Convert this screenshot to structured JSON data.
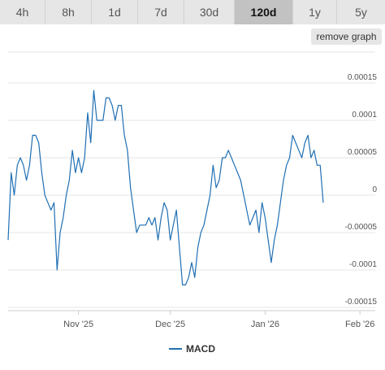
{
  "tabs": [
    {
      "label": "4h",
      "active": false
    },
    {
      "label": "8h",
      "active": false
    },
    {
      "label": "1d",
      "active": false
    },
    {
      "label": "7d",
      "active": false
    },
    {
      "label": "30d",
      "active": false
    },
    {
      "label": "120d",
      "active": true
    },
    {
      "label": "1y",
      "active": false
    },
    {
      "label": "5y",
      "active": false
    }
  ],
  "remove_graph_label": "remove graph",
  "legend": {
    "label": "MACD"
  },
  "colors": {
    "series": "#1f6fb4",
    "grid": "#e6e6e6",
    "axis_text": "#555555"
  },
  "chart_data": {
    "type": "line",
    "title": "",
    "xlabel": "",
    "ylabel": "",
    "x_range": [
      "2025-10-09",
      "2026-02-06"
    ],
    "ylim": [
      -0.00015,
      0.00015
    ],
    "y_ticks": [
      {
        "value": 0.00015,
        "label": "0.00015"
      },
      {
        "value": 0.0001,
        "label": "0.0001"
      },
      {
        "value": 5e-05,
        "label": "0.00005"
      },
      {
        "value": 0,
        "label": "0"
      },
      {
        "value": -5e-05,
        "label": "-0.00005"
      },
      {
        "value": -0.0001,
        "label": "-0.0001"
      },
      {
        "value": -0.00015,
        "label": "-0.00015"
      }
    ],
    "x_ticks": [
      {
        "date": "2025-11-01",
        "label": "Nov '25"
      },
      {
        "date": "2025-12-01",
        "label": "Dec '25"
      },
      {
        "date": "2026-01-01",
        "label": "Jan '26"
      },
      {
        "date": "2026-02-01",
        "label": "Feb '26"
      }
    ],
    "grid": true,
    "legend_position": "bottom-center",
    "series": [
      {
        "name": "MACD",
        "points": [
          [
            "2025-10-09",
            -6e-05
          ],
          [
            "2025-10-10",
            3e-05
          ],
          [
            "2025-10-11",
            0.0
          ],
          [
            "2025-10-12",
            4e-05
          ],
          [
            "2025-10-13",
            5e-05
          ],
          [
            "2025-10-14",
            4e-05
          ],
          [
            "2025-10-15",
            2e-05
          ],
          [
            "2025-10-16",
            4e-05
          ],
          [
            "2025-10-17",
            8e-05
          ],
          [
            "2025-10-18",
            8e-05
          ],
          [
            "2025-10-19",
            7e-05
          ],
          [
            "2025-10-20",
            3e-05
          ],
          [
            "2025-10-21",
            0.0
          ],
          [
            "2025-10-22",
            -1e-05
          ],
          [
            "2025-10-23",
            -2e-05
          ],
          [
            "2025-10-24",
            -1e-05
          ],
          [
            "2025-10-25",
            -0.0001
          ],
          [
            "2025-10-26",
            -5e-05
          ],
          [
            "2025-10-27",
            -3e-05
          ],
          [
            "2025-10-28",
            0.0
          ],
          [
            "2025-10-29",
            2e-05
          ],
          [
            "2025-10-30",
            6e-05
          ],
          [
            "2025-10-31",
            3e-05
          ],
          [
            "2025-11-01",
            5e-05
          ],
          [
            "2025-11-02",
            3e-05
          ],
          [
            "2025-11-03",
            5e-05
          ],
          [
            "2025-11-04",
            0.00011
          ],
          [
            "2025-11-05",
            7e-05
          ],
          [
            "2025-11-06",
            0.00014
          ],
          [
            "2025-11-07",
            0.0001
          ],
          [
            "2025-11-08",
            0.0001
          ],
          [
            "2025-11-09",
            0.0001
          ],
          [
            "2025-11-10",
            0.00013
          ],
          [
            "2025-11-11",
            0.00013
          ],
          [
            "2025-11-12",
            0.00012
          ],
          [
            "2025-11-13",
            0.0001
          ],
          [
            "2025-11-14",
            0.00012
          ],
          [
            "2025-11-15",
            0.00012
          ],
          [
            "2025-11-16",
            8e-05
          ],
          [
            "2025-11-17",
            6e-05
          ],
          [
            "2025-11-18",
            1e-05
          ],
          [
            "2025-11-19",
            -2e-05
          ],
          [
            "2025-11-20",
            -5e-05
          ],
          [
            "2025-11-21",
            -4e-05
          ],
          [
            "2025-11-22",
            -4e-05
          ],
          [
            "2025-11-23",
            -4e-05
          ],
          [
            "2025-11-24",
            -3e-05
          ],
          [
            "2025-11-25",
            -4e-05
          ],
          [
            "2025-11-26",
            -3e-05
          ],
          [
            "2025-11-27",
            -6e-05
          ],
          [
            "2025-11-28",
            -3e-05
          ],
          [
            "2025-11-29",
            -1e-05
          ],
          [
            "2025-11-30",
            -2e-05
          ],
          [
            "2025-12-01",
            -6e-05
          ],
          [
            "2025-12-02",
            -4e-05
          ],
          [
            "2025-12-03",
            -2e-05
          ],
          [
            "2025-12-04",
            -7e-05
          ],
          [
            "2025-12-05",
            -0.00012
          ],
          [
            "2025-12-06",
            -0.00012
          ],
          [
            "2025-12-07",
            -0.00011
          ],
          [
            "2025-12-08",
            -9e-05
          ],
          [
            "2025-12-09",
            -0.00011
          ],
          [
            "2025-12-10",
            -7e-05
          ],
          [
            "2025-12-11",
            -5e-05
          ],
          [
            "2025-12-12",
            -4e-05
          ],
          [
            "2025-12-13",
            -2e-05
          ],
          [
            "2025-12-14",
            0.0
          ],
          [
            "2025-12-15",
            4e-05
          ],
          [
            "2025-12-16",
            1e-05
          ],
          [
            "2025-12-17",
            2e-05
          ],
          [
            "2025-12-18",
            5e-05
          ],
          [
            "2025-12-19",
            5e-05
          ],
          [
            "2025-12-20",
            6e-05
          ],
          [
            "2025-12-21",
            5e-05
          ],
          [
            "2025-12-22",
            4e-05
          ],
          [
            "2025-12-23",
            3e-05
          ],
          [
            "2025-12-24",
            2e-05
          ],
          [
            "2025-12-25",
            0.0
          ],
          [
            "2025-12-26",
            -2e-05
          ],
          [
            "2025-12-27",
            -4e-05
          ],
          [
            "2025-12-28",
            -3e-05
          ],
          [
            "2025-12-29",
            -2e-05
          ],
          [
            "2025-12-30",
            -5e-05
          ],
          [
            "2025-12-31",
            -1e-05
          ],
          [
            "2026-01-01",
            -3e-05
          ],
          [
            "2026-01-02",
            -6e-05
          ],
          [
            "2026-01-03",
            -9e-05
          ],
          [
            "2026-01-04",
            -6e-05
          ],
          [
            "2026-01-05",
            -4e-05
          ],
          [
            "2026-01-06",
            -1e-05
          ],
          [
            "2026-01-07",
            2e-05
          ],
          [
            "2026-01-08",
            4e-05
          ],
          [
            "2026-01-09",
            5e-05
          ],
          [
            "2026-01-10",
            8e-05
          ],
          [
            "2026-01-11",
            7e-05
          ],
          [
            "2026-01-12",
            6e-05
          ],
          [
            "2026-01-13",
            5e-05
          ],
          [
            "2026-01-14",
            7e-05
          ],
          [
            "2026-01-15",
            8e-05
          ],
          [
            "2026-01-16",
            5e-05
          ],
          [
            "2026-01-17",
            6e-05
          ],
          [
            "2026-01-18",
            4e-05
          ],
          [
            "2026-01-19",
            4e-05
          ],
          [
            "2026-01-20",
            -1e-05
          ]
        ]
      }
    ]
  }
}
